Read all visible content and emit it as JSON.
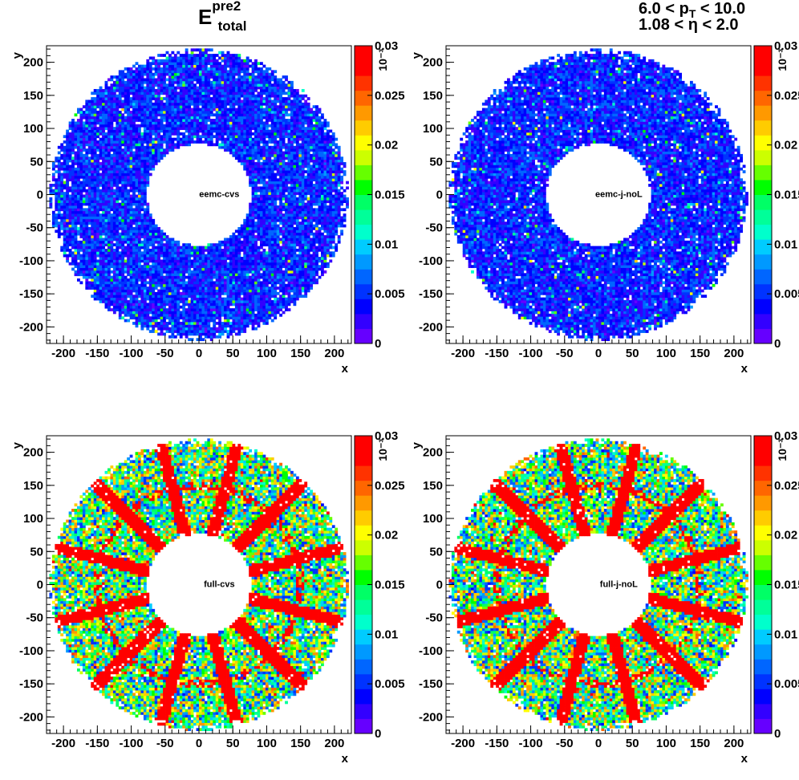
{
  "header": {
    "title_main": "E",
    "title_sup": "pre2",
    "title_sub": "total",
    "cut_pt": {
      "lo": "6.0 < p",
      "sub": "T",
      "hi": " < 10.0"
    },
    "cut_eta": {
      "lo": "1.08 < ",
      "sym": "η",
      "hi": " < 2.0"
    }
  },
  "colors": {
    "palette": [
      "#6600ff",
      "#3300ff",
      "#0000ff",
      "#0033ff",
      "#0066ff",
      "#0099ff",
      "#00ccff",
      "#00ffcc",
      "#00ff99",
      "#00ff66",
      "#00ff00",
      "#66ff00",
      "#ccff00",
      "#ffff00",
      "#ffcc00",
      "#ff9900",
      "#ff6600",
      "#ff3300",
      "#ff0000",
      "#ff0000"
    ]
  },
  "chart_data": [
    {
      "type": "heatmap",
      "label": "eemc-cvs",
      "xlabel": "x",
      "ylabel": "y",
      "xlim": [
        -225,
        225
      ],
      "ylim": [
        -225,
        225
      ],
      "ring": {
        "r_inner": 77,
        "r_outer": 220
      },
      "mean_value": 0.0045,
      "spokes": false,
      "zlim": [
        0,
        0.03
      ],
      "zticks": [
        "0",
        "0.005",
        "0.01",
        "0.015",
        "0.02",
        "0.025",
        "0.03"
      ],
      "z_exponent": "10⁻³",
      "xticks": [
        "-200",
        "-150",
        "-100",
        "-50",
        "0",
        "50",
        "100",
        "150",
        "200"
      ],
      "yticks": [
        "-200",
        "-150",
        "-100",
        "-50",
        "0",
        "50",
        "100",
        "150",
        "200"
      ]
    },
    {
      "type": "heatmap",
      "label": "eemc-j-noL",
      "xlabel": "x",
      "ylabel": "y",
      "xlim": [
        -225,
        225
      ],
      "ylim": [
        -225,
        225
      ],
      "ring": {
        "r_inner": 77,
        "r_outer": 220
      },
      "mean_value": 0.0045,
      "spokes": false,
      "zlim": [
        0,
        0.03
      ],
      "zticks": [
        "0",
        "0.005",
        "0.01",
        "0.015",
        "0.02",
        "0.025",
        "0.03"
      ],
      "z_exponent": "10⁻³",
      "xticks": [
        "-200",
        "-150",
        "-100",
        "-50",
        "0",
        "50",
        "100",
        "150",
        "200"
      ],
      "yticks": [
        "-200",
        "-150",
        "-100",
        "-50",
        "0",
        "50",
        "100",
        "150",
        "200"
      ]
    },
    {
      "type": "heatmap",
      "label": "full-cvs",
      "xlabel": "x",
      "ylabel": "y",
      "xlim": [
        -225,
        225
      ],
      "ylim": [
        -225,
        225
      ],
      "ring": {
        "r_inner": 77,
        "r_outer": 220
      },
      "mean_value": 0.0145,
      "spokes": true,
      "spoke_angles_deg": [
        15,
        45,
        75,
        105,
        135,
        165,
        195,
        225,
        255,
        285,
        315,
        345
      ],
      "zlim": [
        0,
        0.03
      ],
      "zticks": [
        "0",
        "0.005",
        "0.01",
        "0.015",
        "0.02",
        "0.025",
        "0.03"
      ],
      "z_exponent": "10⁻³",
      "xticks": [
        "-200",
        "-150",
        "-100",
        "-50",
        "0",
        "50",
        "100",
        "150",
        "200"
      ],
      "yticks": [
        "-200",
        "-150",
        "-100",
        "-50",
        "0",
        "50",
        "100",
        "150",
        "200"
      ]
    },
    {
      "type": "heatmap",
      "label": "full-j-noL",
      "xlabel": "x",
      "ylabel": "y",
      "xlim": [
        -225,
        225
      ],
      "ylim": [
        -225,
        225
      ],
      "ring": {
        "r_inner": 77,
        "r_outer": 220
      },
      "mean_value": 0.0145,
      "spokes": true,
      "spoke_angles_deg": [
        15,
        45,
        75,
        105,
        135,
        165,
        195,
        225,
        255,
        285,
        315,
        345
      ],
      "zlim": [
        0,
        0.03
      ],
      "zticks": [
        "0",
        "0.005",
        "0.01",
        "0.015",
        "0.02",
        "0.025",
        "0.03"
      ],
      "z_exponent": "10⁻³",
      "xticks": [
        "-200",
        "-150",
        "-100",
        "-50",
        "0",
        "50",
        "100",
        "150",
        "200"
      ],
      "yticks": [
        "-200",
        "-150",
        "-100",
        "-50",
        "0",
        "50",
        "100",
        "150",
        "200"
      ]
    }
  ]
}
